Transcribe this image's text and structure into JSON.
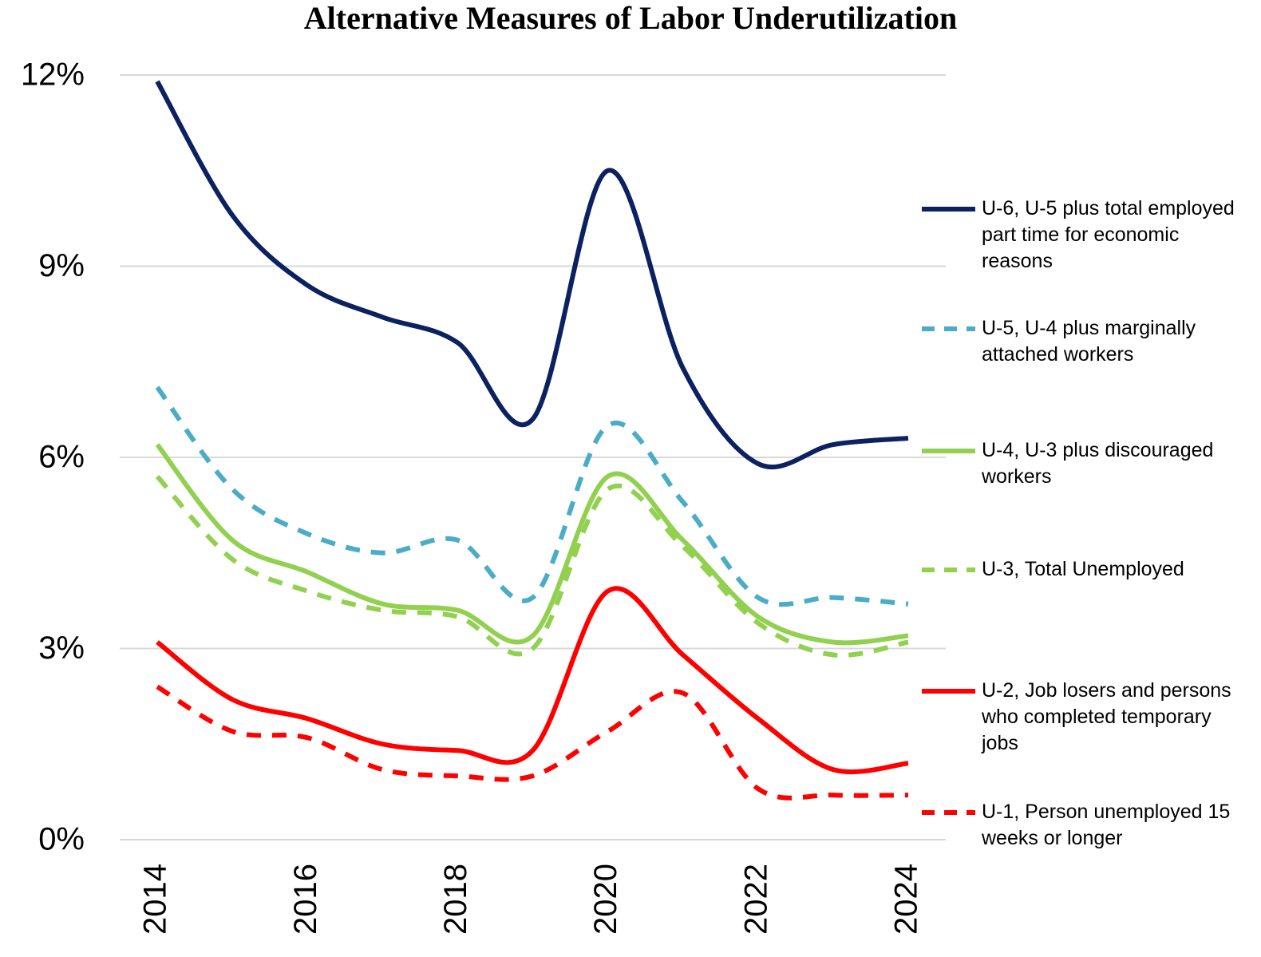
{
  "chart_data": {
    "type": "line",
    "title": "Alternative Measures of Labor Underutilization",
    "x": [
      2014,
      2015,
      2016,
      2017,
      2018,
      2019,
      2020,
      2021,
      2022,
      2023,
      2024
    ],
    "xlim": [
      2013.5,
      2024.5
    ],
    "xticks": [
      2014,
      2016,
      2018,
      2020,
      2022,
      2024
    ],
    "ylim": [
      0,
      12
    ],
    "yticks": [
      {
        "value": 0,
        "label": "0%"
      },
      {
        "value": 3,
        "label": "3%"
      },
      {
        "value": 6,
        "label": "6%"
      },
      {
        "value": 9,
        "label": "9%"
      },
      {
        "value": 12,
        "label": "12%"
      }
    ],
    "grid": true,
    "legend": "right",
    "series": [
      {
        "name": "U-6, U-5 plus total employed part time for economic reasons",
        "color": "#0c2160",
        "line_style": "solid",
        "values": [
          11.9,
          9.8,
          8.7,
          8.2,
          7.8,
          6.6,
          10.5,
          7.4,
          5.9,
          6.2,
          6.3
        ]
      },
      {
        "name": "U-5, U-4 plus marginally attached workers",
        "color": "#4bacc6",
        "line_style": "dashed",
        "values": [
          7.1,
          5.5,
          4.8,
          4.5,
          4.7,
          3.8,
          6.5,
          5.3,
          3.8,
          3.8,
          3.7
        ]
      },
      {
        "name": "U-4, U-3 plus discouraged workers",
        "color": "#92d050",
        "line_style": "solid",
        "values": [
          6.2,
          4.7,
          4.2,
          3.7,
          3.6,
          3.2,
          5.7,
          4.7,
          3.5,
          3.1,
          3.2
        ]
      },
      {
        "name": "U-3, Total Unemployed",
        "color": "#92d050",
        "line_style": "dashed",
        "values": [
          5.7,
          4.4,
          3.9,
          3.6,
          3.5,
          3.0,
          5.5,
          4.6,
          3.4,
          2.9,
          3.1
        ]
      },
      {
        "name": "U-2, Job losers and persons who completed temporary jobs",
        "color": "#ff0000",
        "line_style": "solid",
        "values": [
          3.1,
          2.2,
          1.9,
          1.5,
          1.4,
          1.4,
          3.9,
          2.9,
          1.9,
          1.1,
          1.2
        ]
      },
      {
        "name": "U-1, Person unemployed 15 weeks or longer",
        "color": "#ff0000",
        "line_style": "dashed",
        "values": [
          2.4,
          1.7,
          1.6,
          1.1,
          1.0,
          1.0,
          1.7,
          2.3,
          0.8,
          0.7,
          0.7
        ]
      }
    ]
  }
}
